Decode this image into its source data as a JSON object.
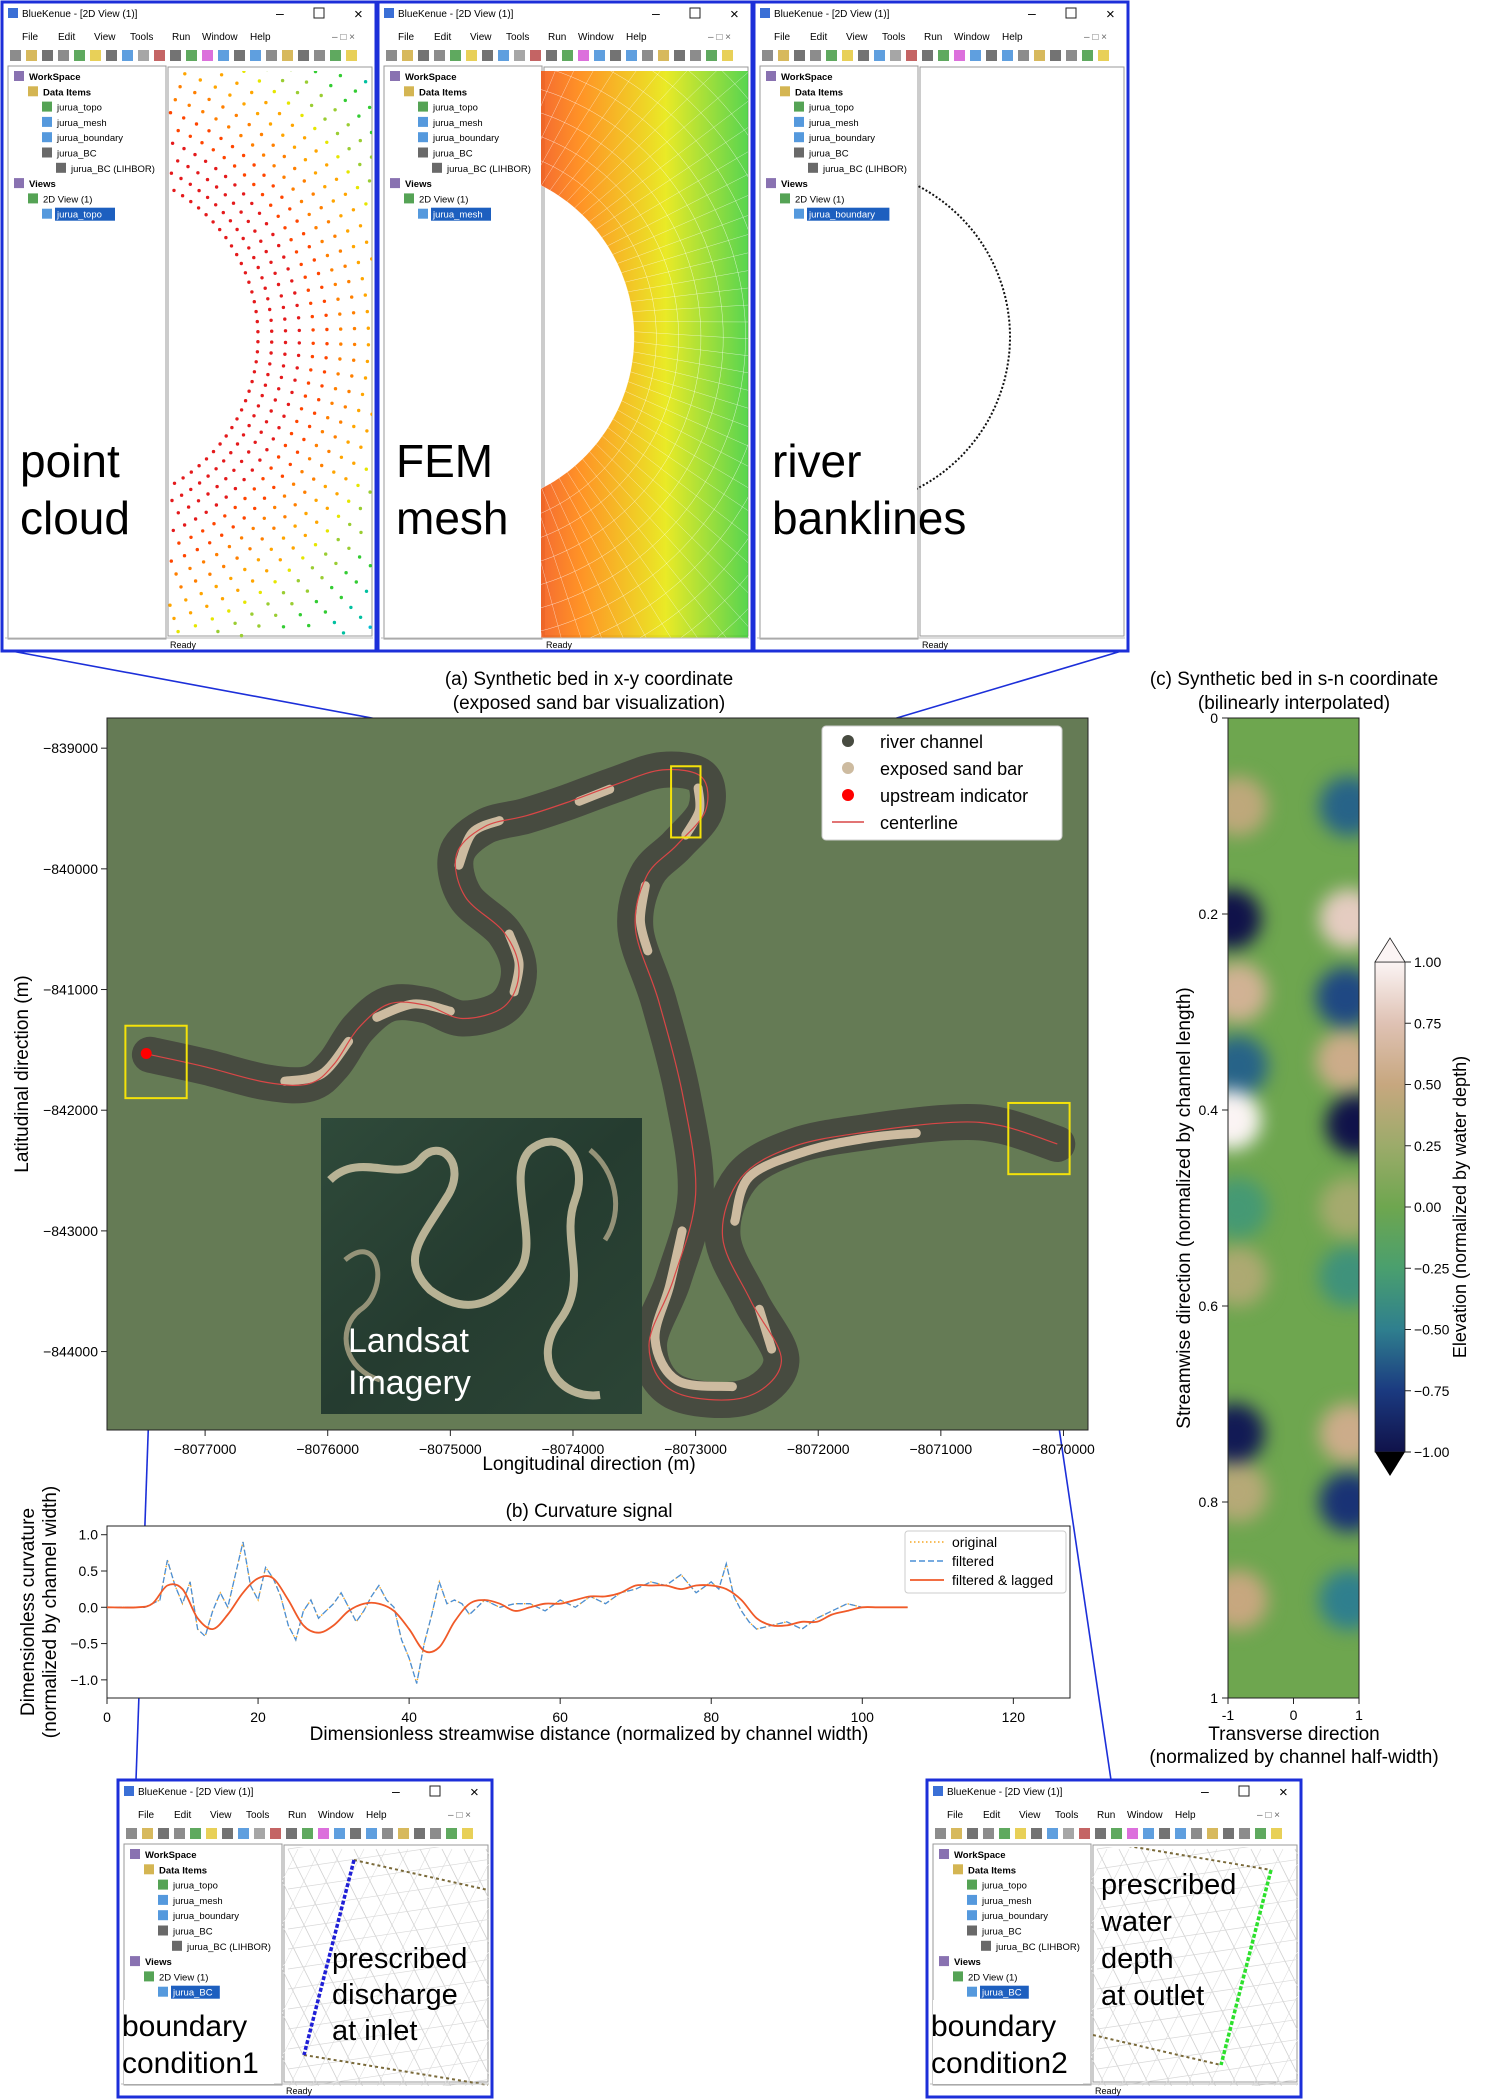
{
  "windows": {
    "app_title": "BlueKenue - [2D View (1)]",
    "menu": [
      "File",
      "Edit",
      "View",
      "Tools",
      "Run",
      "Window",
      "Help"
    ],
    "tree": {
      "workspace": "WorkSpace",
      "data_items": "Data Items",
      "topo": "jurua_topo",
      "mesh": "jurua_mesh",
      "boundary": "jurua_boundary",
      "bc": "jurua_BC",
      "bc_lihbor": "jurua_BC (LIHBOR)",
      "views": "Views",
      "view2d": "2D View (1)"
    },
    "status": "Ready",
    "panels": [
      {
        "selected": "jurua_topo",
        "caption_line1": "point",
        "caption_line2": "cloud"
      },
      {
        "selected": "jurua_mesh",
        "caption_line1": "FEM",
        "caption_line2": "mesh"
      },
      {
        "selected": "jurua_boundary",
        "caption_line1": "river",
        "caption_line2": "banklines"
      },
      {
        "selected": "jurua_BC",
        "caption": "boundary condition1",
        "inner_caption": [
          "prescribed",
          "discharge",
          "at inlet"
        ]
      },
      {
        "selected": "jurua_BC",
        "caption": "boundary condition2",
        "inner_caption": [
          "prescribed",
          "water",
          "depth",
          "at outlet"
        ]
      }
    ]
  },
  "chart_data": [
    {
      "type": "scatter",
      "title_line1": "(a) Synthetic bed in x-y coordinate",
      "title_line2": "(exposed sand bar visualization)",
      "xlabel": "Longitudinal direction (m)",
      "ylabel": "Latitudinal direction (m)",
      "xlim": [
        -8077800,
        -8069800
      ],
      "ylim": [
        -844650,
        -838750
      ],
      "xticks": [
        -8077000,
        -8076000,
        -8075000,
        -8074000,
        -8073000,
        -8072000,
        -8071000,
        -8070000
      ],
      "xtick_labels": [
        "−8077000",
        "−8076000",
        "−8075000",
        "−8074000",
        "−8073000",
        "−8072000",
        "−8071000",
        "−8070000"
      ],
      "yticks": [
        -839000,
        -840000,
        -841000,
        -842000,
        -843000,
        -844000
      ],
      "ytick_labels": [
        "−839000",
        "−840000",
        "−841000",
        "−842000",
        "−843000",
        "−844000"
      ],
      "legend": {
        "placement": "top-right",
        "entries": [
          "river channel",
          "exposed sand bar",
          "upstream indicator",
          "centerline"
        ]
      },
      "colors": {
        "background": "#657b55",
        "channel": "#474b40",
        "sandbar": "#cdbba0",
        "centerline": "#d94646",
        "upstream": "#ff0000"
      },
      "inset": {
        "label_line1": "Landsat",
        "label_line2": "Imagery"
      },
      "centerline": [
        [
          -8077450,
          -841540
        ],
        [
          -8077000,
          -841640
        ],
        [
          -8076500,
          -841770
        ],
        [
          -8076150,
          -841780
        ],
        [
          -8075950,
          -841620
        ],
        [
          -8075750,
          -841320
        ],
        [
          -8075500,
          -841120
        ],
        [
          -8075200,
          -841130
        ],
        [
          -8074900,
          -841240
        ],
        [
          -8074560,
          -841140
        ],
        [
          -8074440,
          -840850
        ],
        [
          -8074560,
          -840530
        ],
        [
          -8074880,
          -840230
        ],
        [
          -8074950,
          -839880
        ],
        [
          -8074720,
          -839650
        ],
        [
          -8074380,
          -839560
        ],
        [
          -8074050,
          -839450
        ],
        [
          -8073650,
          -839300
        ],
        [
          -8073270,
          -839180
        ],
        [
          -8072950,
          -839240
        ],
        [
          -8072920,
          -839520
        ],
        [
          -8073150,
          -839800
        ],
        [
          -8073400,
          -840060
        ],
        [
          -8073490,
          -840500
        ],
        [
          -8073300,
          -841100
        ],
        [
          -8073100,
          -841900
        ],
        [
          -8073000,
          -842700
        ],
        [
          -8073180,
          -843400
        ],
        [
          -8073380,
          -843950
        ],
        [
          -8073180,
          -844330
        ],
        [
          -8072600,
          -844380
        ],
        [
          -8072300,
          -844080
        ],
        [
          -8072550,
          -843580
        ],
        [
          -8072780,
          -843050
        ],
        [
          -8072630,
          -842560
        ],
        [
          -8072200,
          -842300
        ],
        [
          -8071600,
          -842180
        ],
        [
          -8070900,
          -842100
        ],
        [
          -8070500,
          -842130
        ],
        [
          -8070050,
          -842280
        ]
      ],
      "sandbars": [
        [
          [
            -8076350,
            -841760
          ],
          [
            -8076050,
            -841700
          ],
          [
            -8075830,
            -841430
          ]
        ],
        [
          [
            -8075600,
            -841230
          ],
          [
            -8075300,
            -841120
          ],
          [
            -8075000,
            -841180
          ]
        ],
        [
          [
            -8074480,
            -841020
          ],
          [
            -8074440,
            -840780
          ],
          [
            -8074520,
            -840540
          ]
        ],
        [
          [
            -8074930,
            -839970
          ],
          [
            -8074820,
            -839700
          ],
          [
            -8074600,
            -839600
          ]
        ],
        [
          [
            -8073950,
            -839440
          ],
          [
            -8073700,
            -839340
          ]
        ],
        [
          [
            -8072980,
            -839330
          ],
          [
            -8072970,
            -839520
          ],
          [
            -8073080,
            -839720
          ]
        ],
        [
          [
            -8073410,
            -840140
          ],
          [
            -8073450,
            -840430
          ],
          [
            -8073390,
            -840680
          ]
        ],
        [
          [
            -8073110,
            -843000
          ],
          [
            -8073210,
            -843450
          ],
          [
            -8073330,
            -843900
          ],
          [
            -8073150,
            -844240
          ],
          [
            -8072700,
            -844290
          ]
        ],
        [
          [
            -8072380,
            -843980
          ],
          [
            -8072480,
            -843650
          ]
        ],
        [
          [
            -8072680,
            -842920
          ],
          [
            -8072560,
            -842550
          ],
          [
            -8072100,
            -842340
          ],
          [
            -8071600,
            -842230
          ],
          [
            -8071200,
            -842190
          ]
        ]
      ],
      "upstream_indicator": [
        -8077480,
        -841530
      ],
      "zoom_boxes": [
        [
          -8077650,
          -841300,
          -8077150,
          -841900
        ],
        [
          -8073200,
          -839150,
          -8072960,
          -839740
        ],
        [
          -8070450,
          -841940,
          -8069950,
          -842530
        ]
      ]
    },
    {
      "type": "line",
      "title": "(b) Curvature signal",
      "xlabel": "Dimensionless streamwise distance (normalized by channel width)",
      "ylabel_line1": "Dimensionless curvature",
      "ylabel_line2": "(normalized by channel width)",
      "xlim": [
        0,
        127.5
      ],
      "ylim": [
        -1.25,
        1.12
      ],
      "xticks": [
        0,
        20,
        40,
        60,
        80,
        100,
        120
      ],
      "yticks": [
        1.0,
        0.5,
        0.0,
        -0.5,
        -1.0
      ],
      "ytick_labels": [
        "1.0",
        "0.5",
        "0.0",
        "−0.5",
        "−1.0"
      ],
      "legend": {
        "placement": "top-right"
      },
      "series": [
        {
          "name": "original",
          "style": "dotted",
          "color": "#f5a623",
          "x": [
            0,
            5,
            7,
            8,
            9,
            10,
            11,
            12,
            13,
            14,
            15,
            16,
            17,
            18,
            19,
            20,
            21,
            22,
            23,
            24,
            25,
            26,
            27,
            28,
            29,
            30,
            31,
            32,
            33,
            34,
            35,
            36,
            37,
            38,
            39,
            40,
            41,
            42,
            43,
            44,
            45,
            46,
            47,
            48,
            49,
            50,
            52,
            54,
            56,
            58,
            60,
            62,
            64,
            66,
            68,
            70,
            72,
            74,
            76,
            78,
            80,
            81,
            82,
            83,
            84,
            85,
            86,
            88,
            90,
            92,
            94,
            96,
            98,
            100,
            102,
            104,
            106
          ],
          "y": [
            0,
            0,
            0.1,
            0.65,
            0.3,
            0.05,
            0.35,
            -0.3,
            -0.4,
            -0.05,
            0.2,
            0.0,
            0.45,
            0.9,
            0.3,
            0.1,
            0.55,
            0.4,
            0.15,
            -0.25,
            -0.45,
            -0.05,
            0.1,
            -0.15,
            -0.05,
            0.05,
            0.2,
            0.0,
            -0.2,
            -0.05,
            0.15,
            0.3,
            0.1,
            0.0,
            -0.45,
            -0.7,
            -1.05,
            -0.5,
            -0.1,
            0.35,
            0.05,
            0.1,
            0.05,
            -0.1,
            0.0,
            0.1,
            0.0,
            0.05,
            0.05,
            -0.05,
            0.1,
            0.0,
            0.15,
            0.05,
            0.2,
            0.25,
            0.35,
            0.3,
            0.45,
            0.2,
            0.35,
            0.25,
            0.6,
            0.15,
            -0.05,
            -0.2,
            -0.3,
            -0.25,
            -0.2,
            -0.3,
            -0.15,
            -0.05,
            0.05,
            0.0,
            0.0,
            0.0,
            0.0
          ]
        },
        {
          "name": "filtered",
          "style": "dashed",
          "color": "#4a8fd6",
          "x": [
            0,
            5,
            7,
            8,
            9,
            10,
            11,
            12,
            13,
            14,
            15,
            16,
            17,
            18,
            19,
            20,
            21,
            22,
            23,
            24,
            25,
            26,
            27,
            28,
            29,
            30,
            31,
            32,
            33,
            34,
            35,
            36,
            37,
            38,
            39,
            40,
            41,
            42,
            43,
            44,
            45,
            46,
            47,
            48,
            49,
            50,
            52,
            54,
            56,
            58,
            60,
            62,
            64,
            66,
            68,
            70,
            72,
            74,
            76,
            78,
            80,
            81,
            82,
            83,
            84,
            85,
            86,
            88,
            90,
            92,
            94,
            96,
            98,
            100,
            102,
            104,
            106
          ],
          "y": [
            0,
            0,
            0.1,
            0.65,
            0.3,
            0.05,
            0.35,
            -0.3,
            -0.4,
            -0.05,
            0.2,
            0.0,
            0.45,
            0.9,
            0.3,
            0.1,
            0.55,
            0.4,
            0.15,
            -0.25,
            -0.45,
            -0.05,
            0.1,
            -0.15,
            -0.05,
            0.05,
            0.2,
            0.0,
            -0.2,
            -0.05,
            0.15,
            0.3,
            0.1,
            0.0,
            -0.45,
            -0.7,
            -1.05,
            -0.5,
            -0.1,
            0.35,
            0.05,
            0.1,
            0.05,
            -0.1,
            0.0,
            0.1,
            0.0,
            0.05,
            0.05,
            -0.05,
            0.1,
            0.0,
            0.15,
            0.05,
            0.2,
            0.25,
            0.35,
            0.3,
            0.45,
            0.2,
            0.35,
            0.25,
            0.6,
            0.15,
            -0.05,
            -0.2,
            -0.3,
            -0.25,
            -0.2,
            -0.3,
            -0.15,
            -0.05,
            0.05,
            0.0,
            0.0,
            0.0,
            0.0
          ]
        },
        {
          "name": "filtered & lagged",
          "style": "solid",
          "color": "#f05a28",
          "x": [
            0,
            4,
            6,
            8,
            10,
            12,
            14,
            16,
            18,
            20,
            22,
            24,
            26,
            28,
            30,
            32,
            34,
            36,
            38,
            40,
            42,
            44,
            46,
            48,
            50,
            52,
            54,
            56,
            58,
            60,
            62,
            64,
            66,
            68,
            70,
            72,
            74,
            76,
            78,
            80,
            82,
            84,
            86,
            88,
            90,
            92,
            94,
            96,
            98,
            100,
            102,
            104,
            106
          ],
          "y": [
            0,
            0,
            0.05,
            0.3,
            0.25,
            -0.15,
            -0.3,
            -0.1,
            0.2,
            0.4,
            0.4,
            0.1,
            -0.25,
            -0.35,
            -0.25,
            -0.05,
            0.05,
            0.05,
            -0.05,
            -0.3,
            -0.6,
            -0.55,
            -0.2,
            0.05,
            0.1,
            0.05,
            -0.05,
            0.0,
            0.05,
            0.05,
            0.1,
            0.15,
            0.15,
            0.2,
            0.3,
            0.3,
            0.3,
            0.25,
            0.3,
            0.3,
            0.25,
            0.1,
            -0.15,
            -0.25,
            -0.25,
            -0.2,
            -0.2,
            -0.1,
            -0.05,
            0.0,
            0.0,
            0.0,
            0.0
          ]
        }
      ]
    },
    {
      "type": "heatmap",
      "title_line1": "(c) Synthetic bed in s-n coordinate",
      "title_line2": "(bilinearly interpolated)",
      "xlabel_line1": "Transverse direction",
      "xlabel_line2": "(normalized by channel half-width)",
      "ylabel": "Streamwise direction (normalized by channel length)",
      "xlim": [
        -1,
        1
      ],
      "ylim": [
        1,
        0
      ],
      "xticks": [
        -1,
        0,
        1
      ],
      "xtick_labels": [
        "-1",
        "0",
        "1"
      ],
      "yticks": [
        0,
        0.2,
        0.4,
        0.6,
        0.8,
        1
      ],
      "ytick_labels": [
        "0",
        "0.2",
        "0.4",
        "0.6",
        "0.8",
        "1"
      ],
      "colorbar": {
        "label": "Elevation (normalized by water depth)",
        "range": [
          -1.0,
          1.0
        ],
        "ticks": [
          1.0,
          0.75,
          0.5,
          0.25,
          0.0,
          -0.25,
          -0.5,
          -0.75,
          -1.0
        ],
        "tick_labels": [
          "1.00",
          "0.75",
          "0.50",
          "0.25",
          "0.00",
          "−0.25",
          "−0.50",
          "−0.75",
          "−1.00"
        ],
        "stops": [
          "#10124a",
          "#1b3a80",
          "#2f7f8e",
          "#4a9f6e",
          "#6ea64f",
          "#9cab6a",
          "#c7a77f",
          "#dfc2b4",
          "#fbf4f4"
        ]
      },
      "spots": [
        {
          "s": 0.09,
          "n": -0.85,
          "v": 0.45
        },
        {
          "s": 0.09,
          "n": 0.85,
          "v": -0.6
        },
        {
          "s": 0.205,
          "n": -0.95,
          "v": -1.0
        },
        {
          "s": 0.205,
          "n": 0.85,
          "v": 0.8
        },
        {
          "s": 0.28,
          "n": -0.85,
          "v": 0.6
        },
        {
          "s": 0.285,
          "n": 0.8,
          "v": -0.7
        },
        {
          "s": 0.355,
          "n": -0.85,
          "v": -0.6
        },
        {
          "s": 0.35,
          "n": 0.8,
          "v": 0.55
        },
        {
          "s": 0.41,
          "n": -0.95,
          "v": 1.0
        },
        {
          "s": 0.415,
          "n": 0.95,
          "v": -1.0
        },
        {
          "s": 0.5,
          "n": -0.85,
          "v": -0.3
        },
        {
          "s": 0.5,
          "n": 0.85,
          "v": 0.3
        },
        {
          "s": 0.57,
          "n": -0.85,
          "v": 0.35
        },
        {
          "s": 0.57,
          "n": 0.85,
          "v": -0.35
        },
        {
          "s": 0.73,
          "n": -0.9,
          "v": -0.95
        },
        {
          "s": 0.73,
          "n": 0.85,
          "v": 0.55
        },
        {
          "s": 0.79,
          "n": -0.85,
          "v": 0.4
        },
        {
          "s": 0.8,
          "n": 0.85,
          "v": -0.8
        },
        {
          "s": 0.9,
          "n": -0.85,
          "v": 0.5
        },
        {
          "s": 0.9,
          "n": 0.85,
          "v": -0.5
        }
      ]
    }
  ]
}
